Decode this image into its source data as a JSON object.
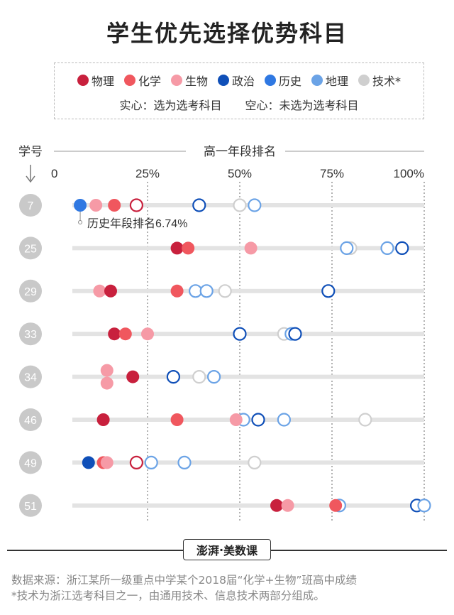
{
  "title": "学生优先选择优势科目",
  "legend": {
    "items": [
      {
        "label": "物理",
        "color": "#c8203d"
      },
      {
        "label": "化学",
        "color": "#f0575e"
      },
      {
        "label": "生物",
        "color": "#f69aa6"
      },
      {
        "label": "政治",
        "color": "#0f4fb8"
      },
      {
        "label": "历史",
        "color": "#2f78e2"
      },
      {
        "label": "地理",
        "color": "#6ba3e6"
      },
      {
        "label": "技术*",
        "color": "#cfcfcf"
      }
    ],
    "solid_note": "实心：选为选考科目",
    "hollow_note": "空心：未选为选考科目"
  },
  "chart_data": {
    "type": "scatter",
    "xlabel": "高一年段排名",
    "ylabel": "学号",
    "xlim": [
      0,
      100
    ],
    "ticks": [
      "0",
      "25%",
      "50%",
      "75%",
      "100%"
    ],
    "tick_values": [
      0,
      25,
      50,
      75,
      100
    ],
    "students": [
      {
        "id": "7",
        "points": [
          {
            "subject": "历史",
            "value": 6.74,
            "selected": true
          },
          {
            "subject": "生物",
            "value": 11,
            "selected": true
          },
          {
            "subject": "化学",
            "value": 16,
            "selected": true
          },
          {
            "subject": "物理",
            "value": 22,
            "selected": false
          },
          {
            "subject": "政治",
            "value": 39,
            "selected": false
          },
          {
            "subject": "技术*",
            "value": 50,
            "selected": false
          },
          {
            "subject": "地理",
            "value": 54,
            "selected": false
          }
        ]
      },
      {
        "id": "25",
        "points": [
          {
            "subject": "物理",
            "value": 33,
            "selected": true
          },
          {
            "subject": "化学",
            "value": 36,
            "selected": true
          },
          {
            "subject": "生物",
            "value": 53,
            "selected": true
          },
          {
            "subject": "技术*",
            "value": 80,
            "selected": false
          },
          {
            "subject": "地理",
            "value": 79,
            "selected": false
          },
          {
            "subject": "地理",
            "value": 90,
            "selected": false
          },
          {
            "subject": "政治",
            "value": 94,
            "selected": false
          }
        ]
      },
      {
        "id": "29",
        "points": [
          {
            "subject": "生物",
            "value": 12,
            "selected": true
          },
          {
            "subject": "物理",
            "value": 15,
            "selected": true
          },
          {
            "subject": "化学",
            "value": 33,
            "selected": true
          },
          {
            "subject": "地理",
            "value": 38,
            "selected": false
          },
          {
            "subject": "地理",
            "value": 41,
            "selected": false
          },
          {
            "subject": "技术*",
            "value": 46,
            "selected": false
          },
          {
            "subject": "政治",
            "value": 74,
            "selected": false
          }
        ]
      },
      {
        "id": "33",
        "points": [
          {
            "subject": "物理",
            "value": 16,
            "selected": true
          },
          {
            "subject": "化学",
            "value": 19,
            "selected": true
          },
          {
            "subject": "生物",
            "value": 25,
            "selected": true
          },
          {
            "subject": "政治",
            "value": 50,
            "selected": false
          },
          {
            "subject": "技术*",
            "value": 62,
            "selected": false
          },
          {
            "subject": "地理",
            "value": 64,
            "selected": false
          },
          {
            "subject": "政治",
            "value": 65,
            "selected": false
          }
        ]
      },
      {
        "id": "34",
        "points": [
          {
            "subject": "生物",
            "value": 14,
            "selected": true,
            "offset": -1
          },
          {
            "subject": "生物",
            "value": 14,
            "selected": true,
            "offset": 1
          },
          {
            "subject": "物理",
            "value": 21,
            "selected": true
          },
          {
            "subject": "政治",
            "value": 32,
            "selected": false
          },
          {
            "subject": "技术*",
            "value": 39,
            "selected": false
          },
          {
            "subject": "地理",
            "value": 43,
            "selected": false
          }
        ]
      },
      {
        "id": "46",
        "points": [
          {
            "subject": "物理",
            "value": 13,
            "selected": true
          },
          {
            "subject": "化学",
            "value": 33,
            "selected": true
          },
          {
            "subject": "生物",
            "value": 49,
            "selected": true
          },
          {
            "subject": "地理",
            "value": 51,
            "selected": false
          },
          {
            "subject": "政治",
            "value": 55,
            "selected": false
          },
          {
            "subject": "地理",
            "value": 62,
            "selected": false
          },
          {
            "subject": "技术*",
            "value": 84,
            "selected": false
          }
        ]
      },
      {
        "id": "49",
        "points": [
          {
            "subject": "政治",
            "value": 9,
            "selected": true
          },
          {
            "subject": "化学",
            "value": 13,
            "selected": true
          },
          {
            "subject": "生物",
            "value": 14,
            "selected": true
          },
          {
            "subject": "物理",
            "value": 22,
            "selected": false
          },
          {
            "subject": "地理",
            "value": 26,
            "selected": false
          },
          {
            "subject": "地理",
            "value": 35,
            "selected": false
          },
          {
            "subject": "技术*",
            "value": 54,
            "selected": false
          }
        ]
      },
      {
        "id": "51",
        "points": [
          {
            "subject": "物理",
            "value": 60,
            "selected": true
          },
          {
            "subject": "生物",
            "value": 63,
            "selected": true
          },
          {
            "subject": "化学",
            "value": 76,
            "selected": true
          },
          {
            "subject": "地理",
            "value": 77,
            "selected": false
          },
          {
            "subject": "政治",
            "value": 98,
            "selected": false
          },
          {
            "subject": "地理",
            "value": 100,
            "selected": false
          }
        ]
      }
    ],
    "annotation": {
      "student": "7",
      "text": "历史年段排名6.74%",
      "value": 6.74
    }
  },
  "brand": {
    "logo": "澎湃",
    "dot": "·",
    "name": "美数课"
  },
  "footer": {
    "source": "数据来源：浙江某所一级重点中学某个2018届“化学+生物”班高中成绩",
    "note": "*技术为浙江选考科目之一，由通用技术、信息技术两部分组成。"
  }
}
